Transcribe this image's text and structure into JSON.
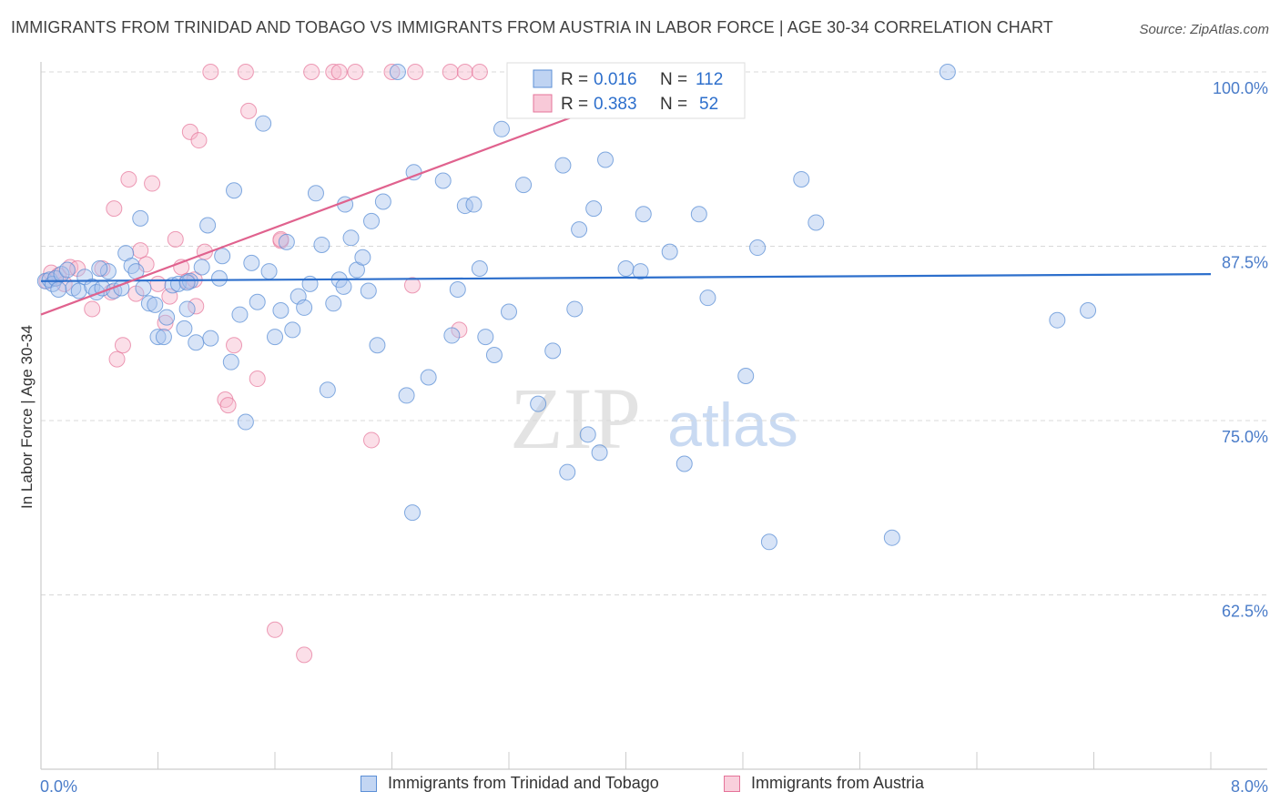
{
  "title": "IMMIGRANTS FROM TRINIDAD AND TOBAGO VS IMMIGRANTS FROM AUSTRIA IN LABOR FORCE | AGE 30-34 CORRELATION CHART",
  "source": "Source: ZipAtlas.com",
  "watermark": {
    "zip": "ZIP",
    "atlas": "atlas"
  },
  "chart_data": {
    "type": "scatter",
    "xlabel": "",
    "ylabel": "In Labor Force | Age 30-34",
    "xlim": [
      0.0,
      8.0
    ],
    "ylim": [
      50.0,
      100.0
    ],
    "x_tick_labels": [
      "0.0%",
      "8.0%"
    ],
    "y_ticks": [
      62.5,
      75.0,
      87.5,
      100.0
    ],
    "y_tick_labels": [
      "62.5%",
      "75.0%",
      "87.5%",
      "100.0%"
    ],
    "grid": true,
    "colors": {
      "blue": "#5b8fd6",
      "blue_fill": "#a9c4ee",
      "pink": "#e57399",
      "pink_fill": "#f6b7cb",
      "blue_line": "#2d6fcc",
      "pink_line": "#e0628e",
      "tick_label": "#4a7cc9"
    },
    "stats_legend": [
      {
        "r_label": "R =",
        "r_value": "0.016",
        "n_label": "N =",
        "n_value": "112"
      },
      {
        "r_label": "R =",
        "r_value": "0.383",
        "n_label": "N =",
        "n_value": "52"
      }
    ],
    "series": [
      {
        "name": "Immigrants from Trinidad and Tobago",
        "trend": [
          [
            0.0,
            85.0
          ],
          [
            8.0,
            85.5
          ]
        ],
        "points": [
          [
            0.03,
            85.0
          ],
          [
            0.06,
            85.1
          ],
          [
            0.08,
            84.8
          ],
          [
            0.1,
            85.2
          ],
          [
            0.14,
            85.5
          ],
          [
            0.18,
            85.8
          ],
          [
            0.22,
            84.5
          ],
          [
            0.26,
            84.3
          ],
          [
            0.3,
            85.3
          ],
          [
            0.35,
            84.6
          ],
          [
            0.38,
            84.2
          ],
          [
            0.42,
            84.5
          ],
          [
            0.46,
            85.7
          ],
          [
            0.5,
            84.3
          ],
          [
            0.58,
            87.0
          ],
          [
            0.62,
            86.1
          ],
          [
            0.65,
            85.7
          ],
          [
            0.68,
            89.5
          ],
          [
            0.7,
            84.5
          ],
          [
            0.74,
            83.4
          ],
          [
            0.78,
            83.3
          ],
          [
            0.8,
            81.0
          ],
          [
            0.84,
            81.0
          ],
          [
            0.86,
            82.4
          ],
          [
            0.9,
            84.7
          ],
          [
            0.94,
            84.8
          ],
          [
            0.98,
            81.6
          ],
          [
            1.0,
            83.0
          ],
          [
            1.02,
            85.0
          ],
          [
            1.06,
            80.6
          ],
          [
            1.1,
            86.0
          ],
          [
            1.14,
            89.0
          ],
          [
            1.16,
            80.9
          ],
          [
            1.22,
            85.2
          ],
          [
            1.24,
            86.8
          ],
          [
            1.3,
            79.2
          ],
          [
            1.32,
            91.5
          ],
          [
            1.36,
            82.6
          ],
          [
            1.4,
            74.9
          ],
          [
            1.44,
            86.3
          ],
          [
            1.48,
            83.5
          ],
          [
            1.52,
            96.3
          ],
          [
            1.56,
            85.7
          ],
          [
            1.6,
            81.0
          ],
          [
            1.64,
            82.9
          ],
          [
            1.68,
            87.8
          ],
          [
            1.72,
            81.5
          ],
          [
            1.76,
            83.9
          ],
          [
            1.8,
            83.1
          ],
          [
            1.84,
            84.8
          ],
          [
            1.88,
            91.3
          ],
          [
            1.92,
            87.6
          ],
          [
            1.96,
            77.2
          ],
          [
            2.0,
            83.4
          ],
          [
            2.04,
            85.1
          ],
          [
            2.08,
            90.5
          ],
          [
            2.12,
            88.1
          ],
          [
            2.16,
            85.8
          ],
          [
            2.2,
            86.7
          ],
          [
            2.26,
            89.3
          ],
          [
            2.34,
            90.7
          ],
          [
            2.24,
            84.3
          ],
          [
            2.3,
            80.4
          ],
          [
            2.44,
            100.0
          ],
          [
            2.5,
            76.8
          ],
          [
            2.55,
            92.8
          ],
          [
            2.65,
            78.1
          ],
          [
            2.75,
            92.2
          ],
          [
            2.81,
            81.1
          ],
          [
            2.85,
            84.4
          ],
          [
            2.9,
            90.4
          ],
          [
            2.96,
            90.5
          ],
          [
            3.0,
            85.9
          ],
          [
            3.04,
            81.0
          ],
          [
            3.1,
            79.7
          ],
          [
            3.15,
            95.9
          ],
          [
            3.2,
            82.8
          ],
          [
            3.3,
            91.9
          ],
          [
            3.4,
            76.2
          ],
          [
            3.5,
            80.0
          ],
          [
            3.57,
            93.3
          ],
          [
            3.6,
            71.3
          ],
          [
            3.65,
            83.0
          ],
          [
            3.68,
            88.7
          ],
          [
            3.74,
            74.0
          ],
          [
            3.78,
            90.2
          ],
          [
            3.82,
            72.7
          ],
          [
            3.86,
            93.7
          ],
          [
            4.0,
            85.9
          ],
          [
            4.1,
            85.7
          ],
          [
            4.12,
            89.8
          ],
          [
            4.3,
            87.1
          ],
          [
            4.4,
            71.9
          ],
          [
            4.5,
            89.8
          ],
          [
            4.56,
            83.8
          ],
          [
            4.7,
            100.0
          ],
          [
            4.82,
            78.2
          ],
          [
            4.9,
            87.4
          ],
          [
            4.98,
            66.3
          ],
          [
            5.2,
            92.3
          ],
          [
            5.3,
            89.2
          ],
          [
            5.82,
            66.6
          ],
          [
            6.2,
            100.0
          ],
          [
            6.95,
            82.2
          ],
          [
            7.16,
            82.9
          ],
          [
            0.12,
            84.4
          ],
          [
            0.4,
            85.9
          ],
          [
            0.55,
            84.5
          ],
          [
            1.0,
            84.9
          ],
          [
            2.54,
            68.4
          ],
          [
            3.58,
            100.0
          ],
          [
            2.07,
            84.6
          ]
        ]
      },
      {
        "name": "Immigrants from Austria",
        "trend": [
          [
            0.0,
            82.6
          ],
          [
            3.9,
            97.8
          ]
        ],
        "points": [
          [
            0.04,
            85.0
          ],
          [
            0.07,
            85.6
          ],
          [
            0.1,
            85.2
          ],
          [
            0.12,
            85.4
          ],
          [
            0.16,
            84.8
          ],
          [
            0.2,
            86.0
          ],
          [
            0.25,
            85.9
          ],
          [
            0.35,
            83.0
          ],
          [
            0.42,
            85.9
          ],
          [
            0.48,
            84.2
          ],
          [
            0.5,
            90.2
          ],
          [
            0.52,
            79.4
          ],
          [
            0.56,
            80.4
          ],
          [
            0.6,
            92.3
          ],
          [
            0.65,
            84.1
          ],
          [
            0.68,
            87.2
          ],
          [
            0.72,
            86.2
          ],
          [
            0.76,
            92.0
          ],
          [
            0.8,
            84.8
          ],
          [
            0.85,
            82.0
          ],
          [
            0.88,
            83.9
          ],
          [
            0.92,
            88.0
          ],
          [
            0.96,
            86.0
          ],
          [
            1.0,
            85.0
          ],
          [
            1.02,
            95.7
          ],
          [
            1.05,
            85.1
          ],
          [
            1.06,
            83.2
          ],
          [
            1.08,
            95.1
          ],
          [
            1.12,
            87.1
          ],
          [
            1.16,
            100.0
          ],
          [
            1.26,
            76.5
          ],
          [
            1.28,
            76.1
          ],
          [
            1.32,
            80.4
          ],
          [
            1.4,
            100.0
          ],
          [
            1.42,
            97.2
          ],
          [
            1.48,
            78.0
          ],
          [
            1.6,
            60.0
          ],
          [
            1.64,
            87.9
          ],
          [
            1.64,
            88.0
          ],
          [
            1.8,
            58.2
          ],
          [
            1.85,
            100.0
          ],
          [
            2.0,
            100.0
          ],
          [
            2.04,
            100.0
          ],
          [
            2.15,
            100.0
          ],
          [
            2.26,
            73.6
          ],
          [
            2.4,
            100.0
          ],
          [
            2.54,
            84.7
          ],
          [
            2.56,
            100.0
          ],
          [
            2.8,
            100.0
          ],
          [
            2.9,
            100.0
          ],
          [
            3.0,
            100.0
          ],
          [
            2.86,
            81.5
          ]
        ]
      }
    ]
  },
  "legend": {
    "items": [
      {
        "label": "Immigrants from Trinidad and Tobago"
      },
      {
        "label": "Immigrants from Austria"
      }
    ]
  }
}
